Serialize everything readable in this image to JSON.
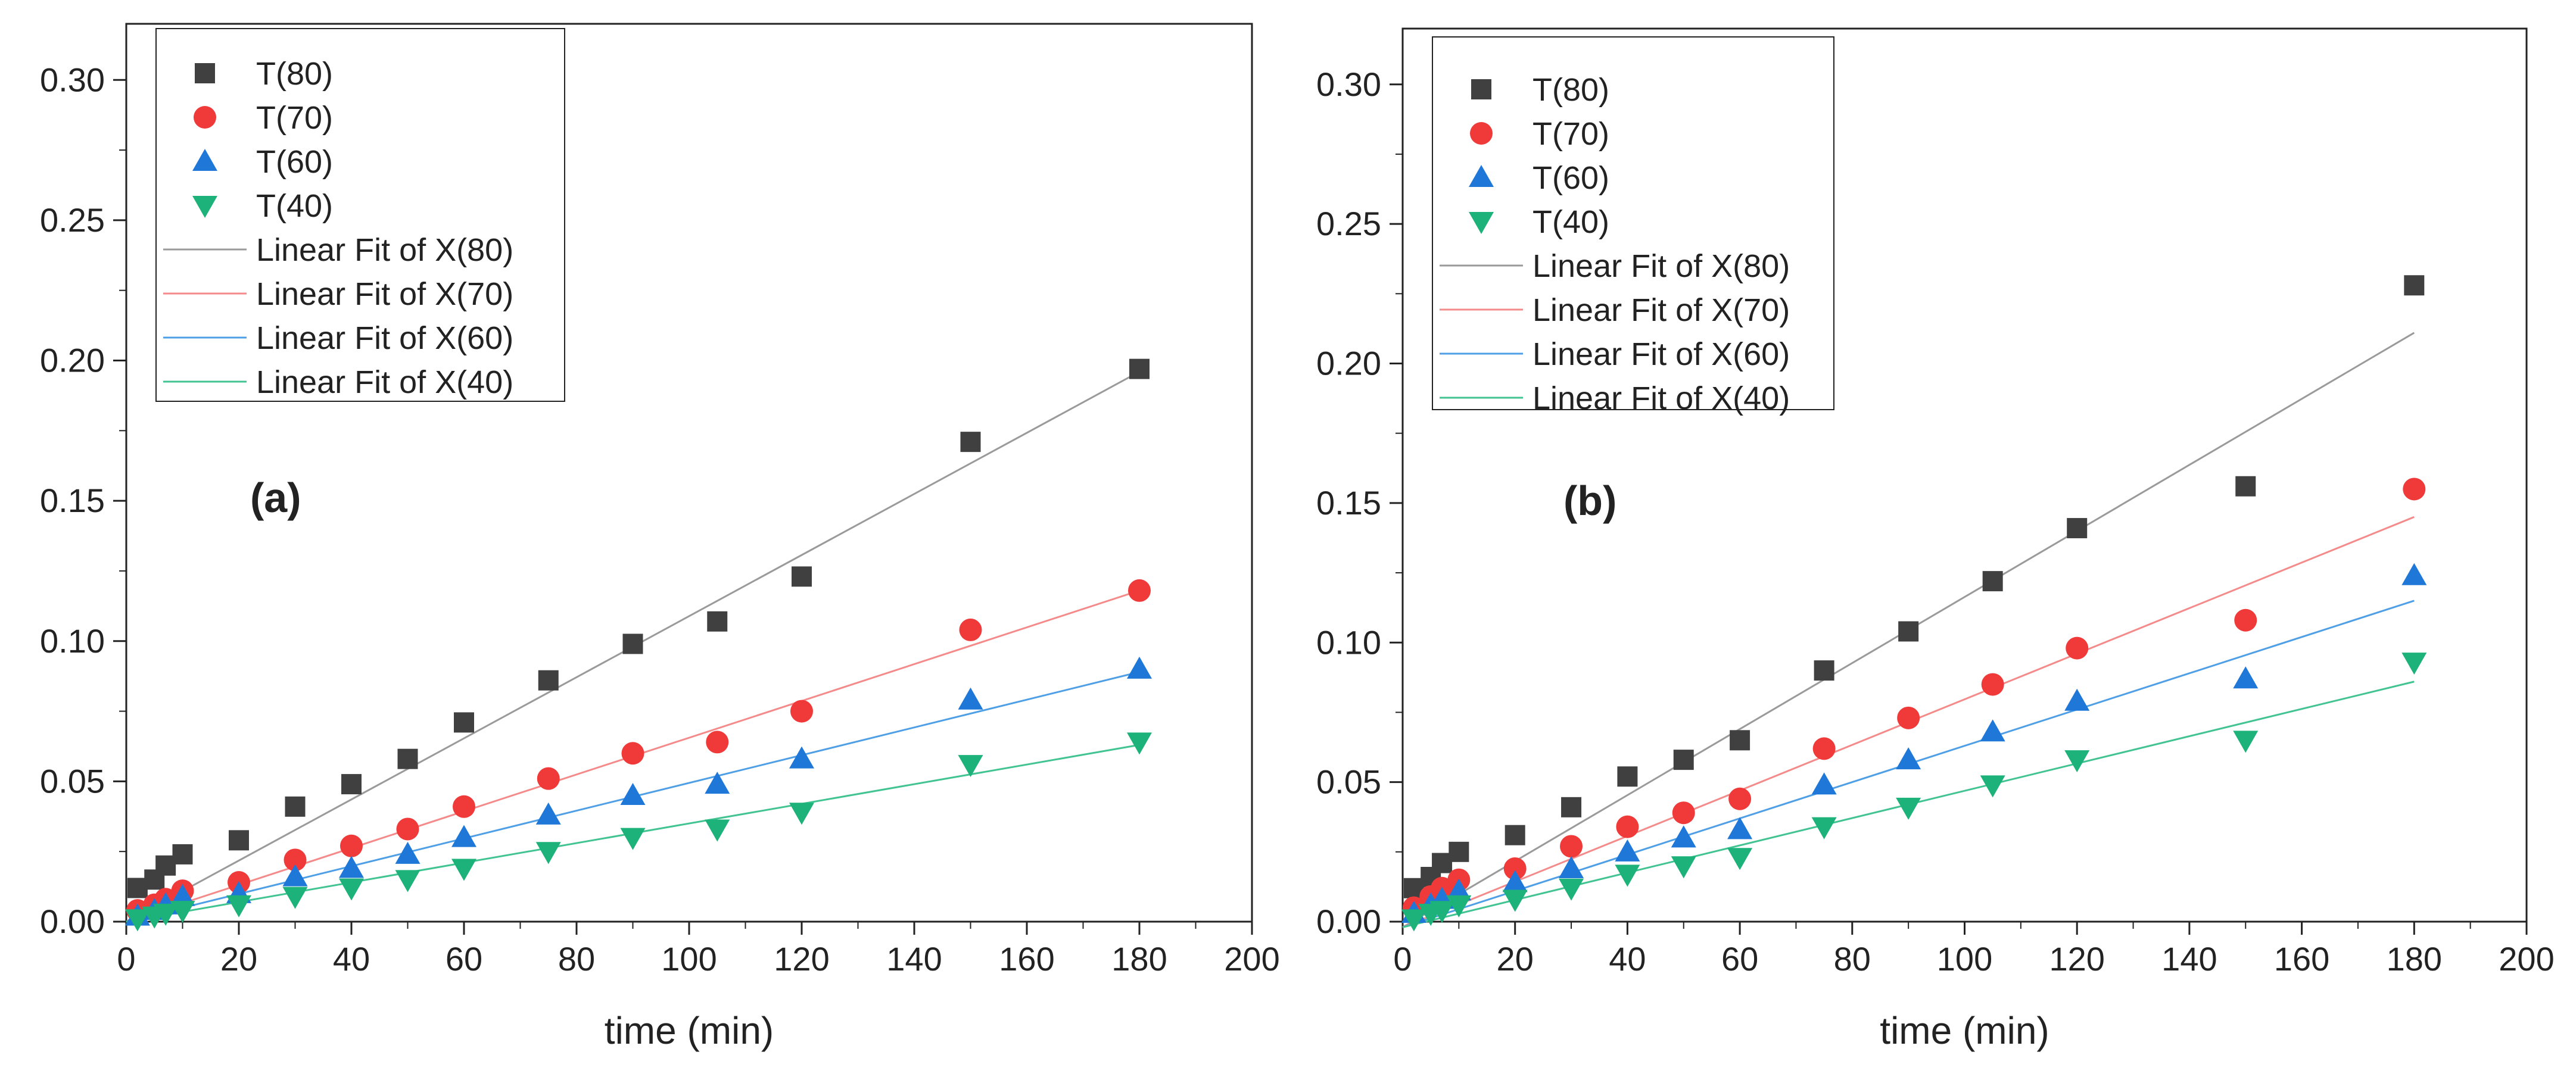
{
  "colors": {
    "T(80)": "#404040",
    "T(70)": "#f03a3a",
    "T(60)": "#1f78d8",
    "T(40)": "#1cb279",
    "fit_T(80)": "#9a9a9a",
    "fit_T(70)": "#f58a8a",
    "fit_T(60)": "#4f9fe6",
    "fit_T(40)": "#41c392"
  },
  "chart_data": [
    {
      "type": "scatter",
      "panel_label": "(a)",
      "xlabel": "time (min)",
      "ylabel": "",
      "xlim": [
        0,
        200
      ],
      "ylim": [
        0,
        0.32
      ],
      "x_ticks": [
        "0",
        "20",
        "40",
        "60",
        "80",
        "100",
        "120",
        "140",
        "160",
        "180",
        "200"
      ],
      "y_ticks": [
        "0.00",
        "0.05",
        "0.10",
        "0.15",
        "0.20",
        "0.25",
        "0.30"
      ],
      "legend_position": "top-left",
      "legend": [
        "T(80)",
        "T(70)",
        "T(60)",
        "T(40)",
        "Linear Fit of X(80)",
        "Linear Fit of X(70)",
        "Linear Fit of X(60)",
        "Linear Fit of X(40)"
      ],
      "x": [
        2,
        5,
        7,
        10,
        20,
        30,
        40,
        50,
        60,
        75,
        90,
        105,
        120,
        150,
        180
      ],
      "series": [
        {
          "name": "T(80)",
          "marker": "square",
          "values": [
            0.012,
            0.015,
            0.02,
            0.024,
            0.029,
            0.041,
            0.049,
            0.058,
            0.071,
            0.086,
            0.099,
            0.107,
            0.123,
            0.171,
            0.197
          ]
        },
        {
          "name": "T(70)",
          "marker": "circle",
          "values": [
            0.004,
            0.006,
            0.008,
            0.011,
            0.014,
            0.022,
            0.027,
            0.033,
            0.041,
            0.051,
            0.06,
            0.064,
            0.075,
            0.104,
            0.118
          ]
        },
        {
          "name": "T(60)",
          "marker": "triangle-up",
          "values": [
            0.002,
            0.004,
            0.006,
            0.009,
            0.01,
            0.016,
            0.019,
            0.024,
            0.03,
            0.038,
            0.045,
            0.049,
            0.058,
            0.079,
            0.09
          ]
        },
        {
          "name": "T(40)",
          "marker": "triangle-down",
          "values": [
            0.001,
            0.002,
            0.003,
            0.004,
            0.006,
            0.009,
            0.012,
            0.015,
            0.019,
            0.025,
            0.03,
            0.033,
            0.039,
            0.056,
            0.064
          ]
        }
      ],
      "fits": [
        {
          "name": "Linear Fit of X(80)",
          "series": "T(80)",
          "x_range": [
            0,
            180
          ],
          "y_range": [
            0.0,
            0.196
          ]
        },
        {
          "name": "Linear Fit of X(70)",
          "series": "T(70)",
          "x_range": [
            0,
            180
          ],
          "y_range": [
            0.0,
            0.118
          ]
        },
        {
          "name": "Linear Fit of X(60)",
          "series": "T(60)",
          "x_range": [
            0,
            180
          ],
          "y_range": [
            0.0,
            0.089
          ]
        },
        {
          "name": "Linear Fit of X(40)",
          "series": "T(40)",
          "x_range": [
            0,
            180
          ],
          "y_range": [
            0.0,
            0.063
          ]
        }
      ]
    },
    {
      "type": "scatter",
      "panel_label": "(b)",
      "xlabel": "time (min)",
      "ylabel": "",
      "xlim": [
        0,
        200
      ],
      "ylim": [
        0,
        0.32
      ],
      "x_ticks": [
        "0",
        "20",
        "40",
        "60",
        "80",
        "100",
        "120",
        "140",
        "160",
        "180",
        "200"
      ],
      "y_ticks": [
        "0.00",
        "0.05",
        "0.10",
        "0.15",
        "0.20",
        "0.25",
        "0.30"
      ],
      "legend_position": "top-left",
      "legend": [
        "T(80)",
        "T(70)",
        "T(60)",
        "T(40)",
        "Linear Fit of X(80)",
        "Linear Fit of X(70)",
        "Linear Fit of X(60)",
        "Linear Fit of X(40)"
      ],
      "x": [
        2,
        5,
        7,
        10,
        20,
        30,
        40,
        50,
        60,
        75,
        90,
        105,
        120,
        150,
        180
      ],
      "series": [
        {
          "name": "T(80)",
          "marker": "square",
          "values": [
            0.012,
            0.016,
            0.021,
            0.025,
            0.031,
            0.041,
            0.052,
            0.058,
            0.065,
            0.09,
            0.104,
            0.122,
            0.141,
            0.156,
            0.228
          ]
        },
        {
          "name": "T(70)",
          "marker": "circle",
          "values": [
            0.005,
            0.009,
            0.012,
            0.015,
            0.019,
            0.027,
            0.034,
            0.039,
            0.044,
            0.062,
            0.073,
            0.085,
            0.098,
            0.108,
            0.155
          ]
        },
        {
          "name": "T(60)",
          "marker": "triangle-up",
          "values": [
            0.003,
            0.006,
            0.008,
            0.011,
            0.014,
            0.019,
            0.025,
            0.03,
            0.033,
            0.049,
            0.058,
            0.068,
            0.079,
            0.087,
            0.124
          ]
        },
        {
          "name": "T(40)",
          "marker": "triangle-down",
          "values": [
            0.001,
            0.003,
            0.004,
            0.006,
            0.008,
            0.012,
            0.017,
            0.02,
            0.023,
            0.034,
            0.041,
            0.049,
            0.058,
            0.065,
            0.093
          ]
        }
      ],
      "fits": [
        {
          "name": "Linear Fit of X(80)",
          "series": "T(80)",
          "x_range": [
            0,
            180
          ],
          "y_range": [
            -0.002,
            0.211
          ]
        },
        {
          "name": "Linear Fit of X(70)",
          "series": "T(70)",
          "x_range": [
            0,
            180
          ],
          "y_range": [
            -0.002,
            0.145
          ]
        },
        {
          "name": "Linear Fit of X(60)",
          "series": "T(60)",
          "x_range": [
            0,
            180
          ],
          "y_range": [
            -0.002,
            0.115
          ]
        },
        {
          "name": "Linear Fit of X(40)",
          "series": "T(40)",
          "x_range": [
            0,
            180
          ],
          "y_range": [
            -0.002,
            0.086
          ]
        }
      ]
    }
  ]
}
